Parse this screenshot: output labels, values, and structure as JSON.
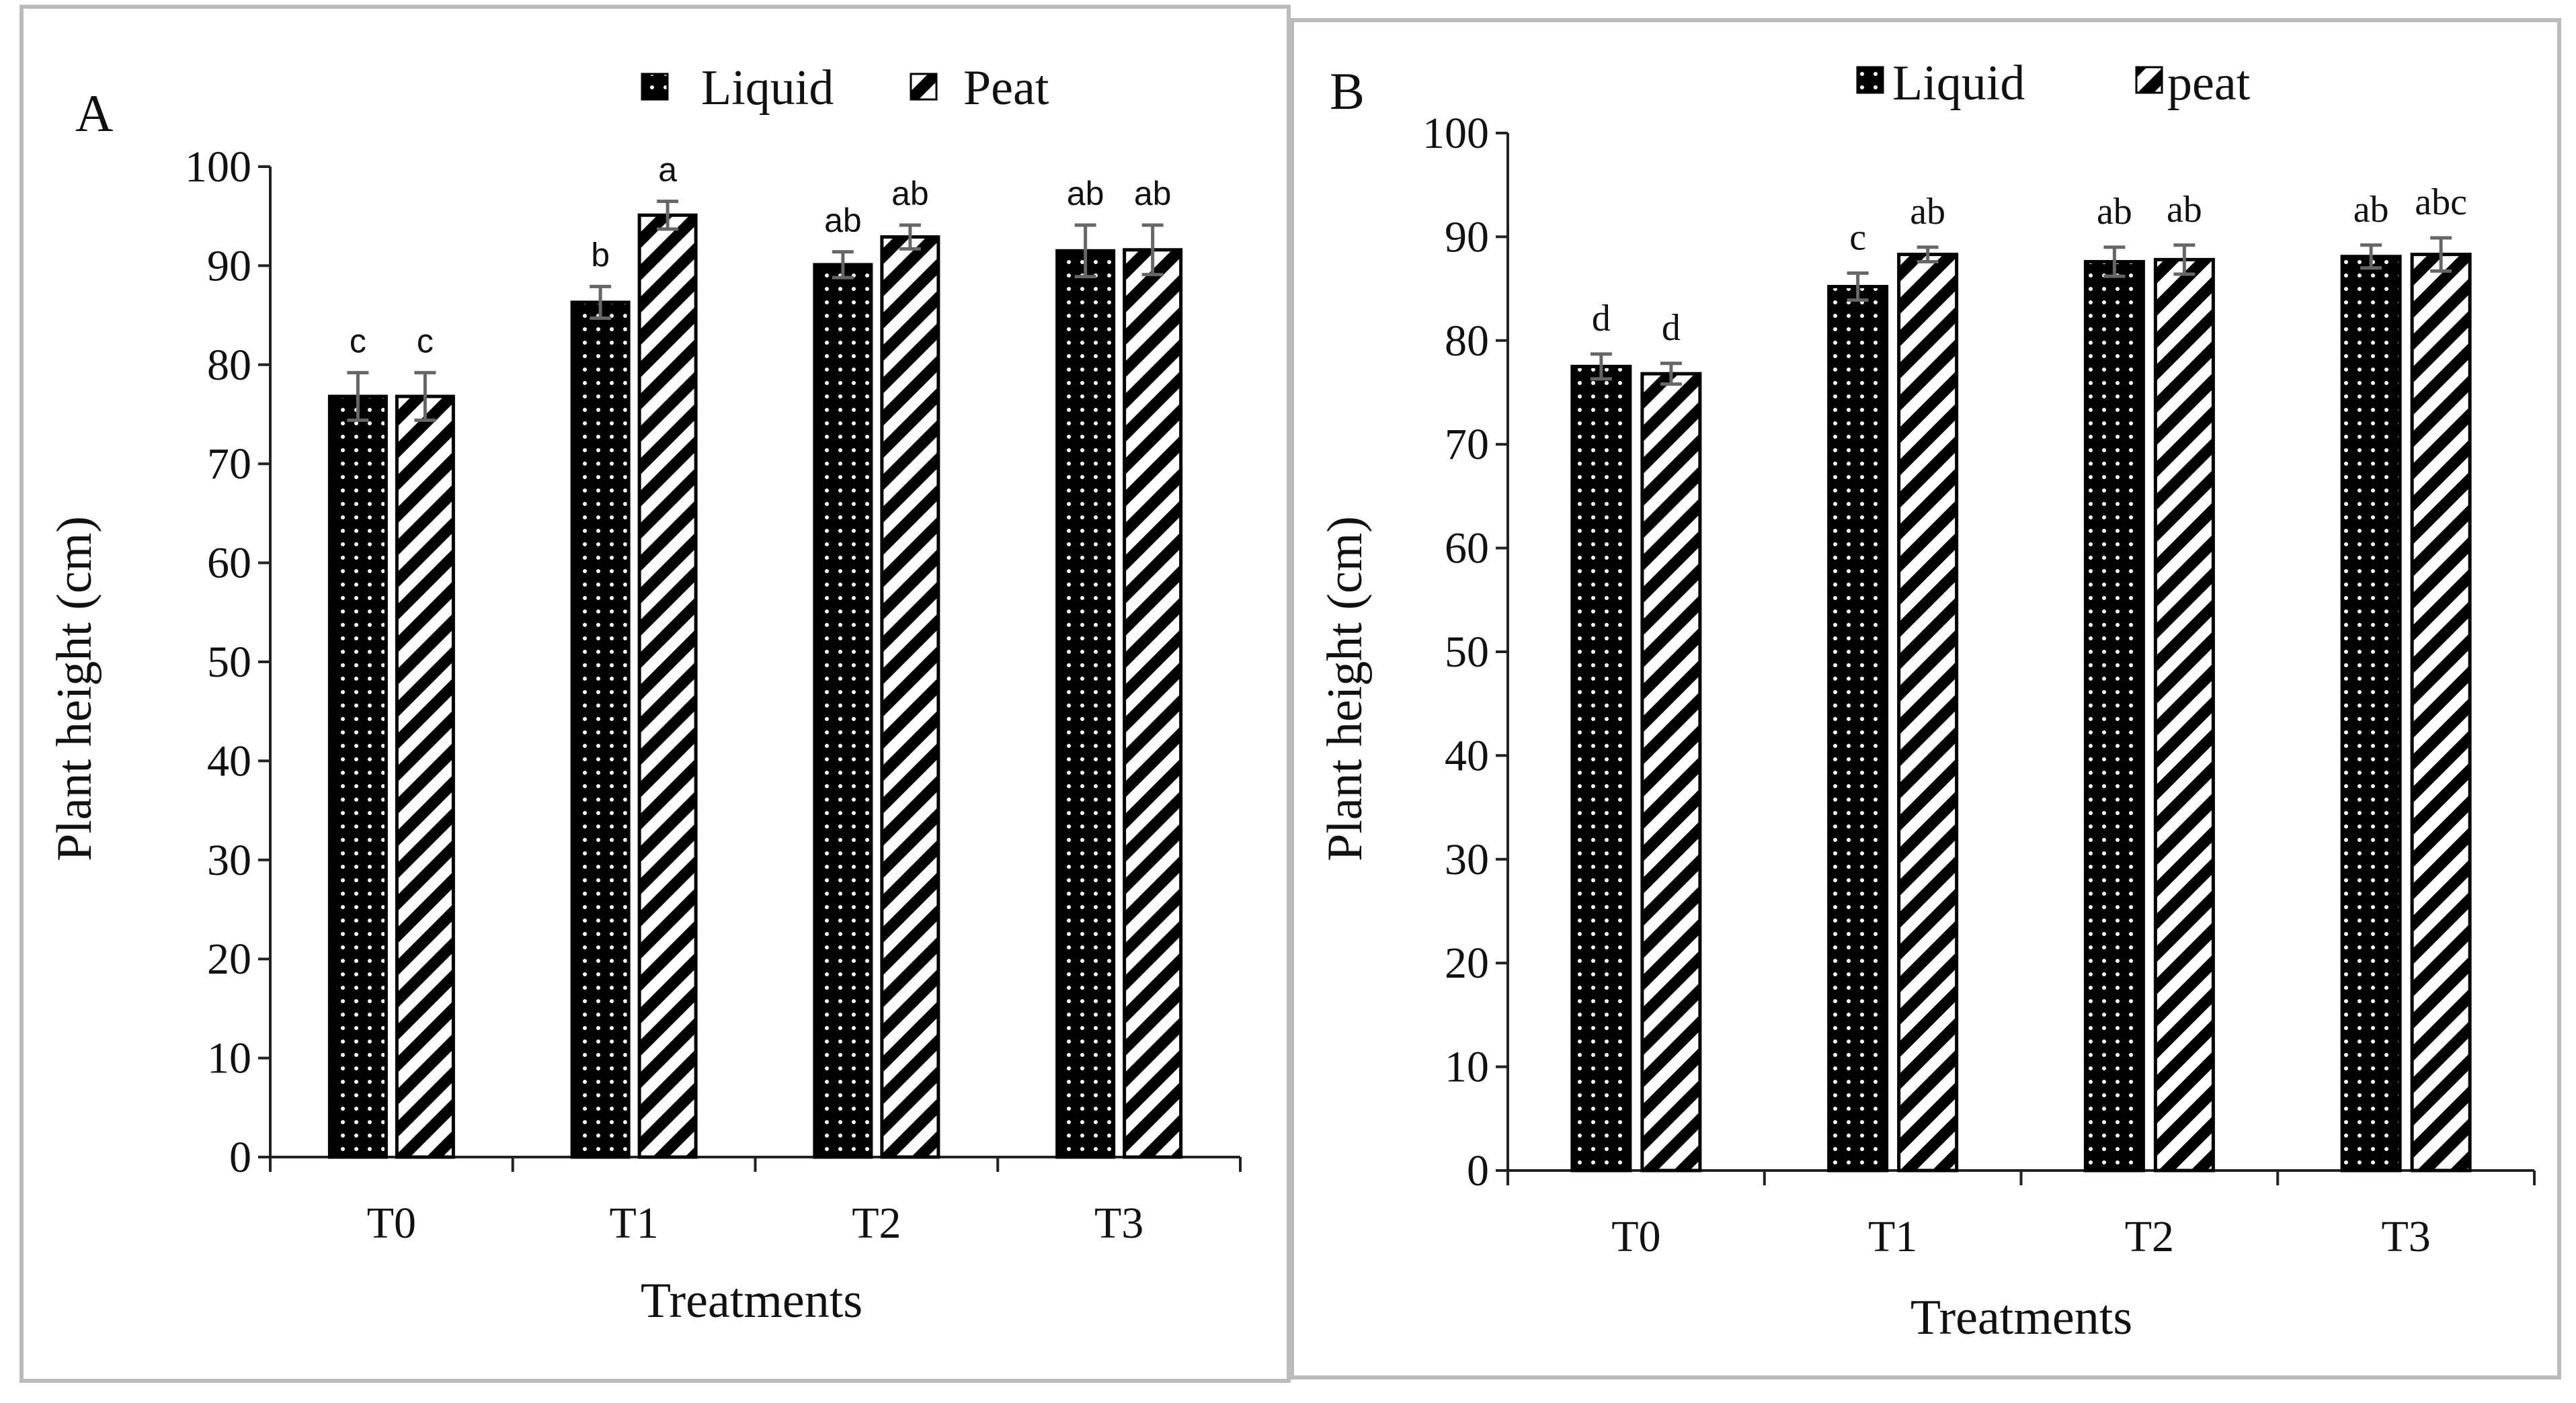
{
  "chart_data": [
    {
      "type": "bar",
      "panel_label": "A",
      "title": "",
      "xlabel": "Treatments",
      "ylabel": "Plant height (cm)",
      "ylim": [
        0,
        100
      ],
      "y_ticks": [
        "0",
        "10",
        "20",
        "30",
        "40",
        "50",
        "60",
        "70",
        "80",
        "90",
        "100"
      ],
      "categories": [
        "T0",
        "T1",
        "T2",
        "T3"
      ],
      "grid": false,
      "legend_position": "top-center",
      "series": [
        {
          "name": "Liquid",
          "pattern": "dots",
          "values": [
            76.8,
            86.3,
            90.1,
            91.5
          ],
          "errors": [
            2.4,
            1.6,
            1.3,
            2.6
          ],
          "letters": [
            "c",
            "b",
            "ab",
            "ab"
          ]
        },
        {
          "name": "Peat",
          "pattern": "stripes",
          "values": [
            76.8,
            95.1,
            92.9,
            91.6
          ],
          "errors": [
            2.4,
            1.4,
            1.2,
            2.5
          ],
          "letters": [
            "c",
            "a",
            "ab",
            "ab"
          ]
        }
      ]
    },
    {
      "type": "bar",
      "panel_label": "B",
      "title": "",
      "xlabel": "Treatments",
      "ylabel": "Plant height (cm)",
      "ylim": [
        0,
        100
      ],
      "y_ticks": [
        "0",
        "10",
        "20",
        "30",
        "40",
        "50",
        "60",
        "70",
        "80",
        "90",
        "100"
      ],
      "categories": [
        "T0",
        "T1",
        "T2",
        "T3"
      ],
      "grid": false,
      "legend_position": "top-center",
      "series": [
        {
          "name": "Liquid",
          "pattern": "dots",
          "values": [
            77.5,
            85.2,
            87.6,
            88.1
          ],
          "errors": [
            1.2,
            1.3,
            1.4,
            1.1
          ],
          "letters": [
            "d",
            "c",
            "ab",
            "ab"
          ]
        },
        {
          "name": "peat",
          "pattern": "stripes",
          "values": [
            76.8,
            88.3,
            87.8,
            88.3
          ],
          "errors": [
            1.0,
            0.7,
            1.4,
            1.6
          ],
          "letters": [
            "d",
            "ab",
            "ab",
            "abc"
          ]
        }
      ]
    }
  ],
  "colors": {
    "bar_fill": "#000000",
    "bar_pattern": "#ffffff",
    "axis": "#222222",
    "error_bar": "#666666",
    "panel_border": "#bbbbbb"
  }
}
